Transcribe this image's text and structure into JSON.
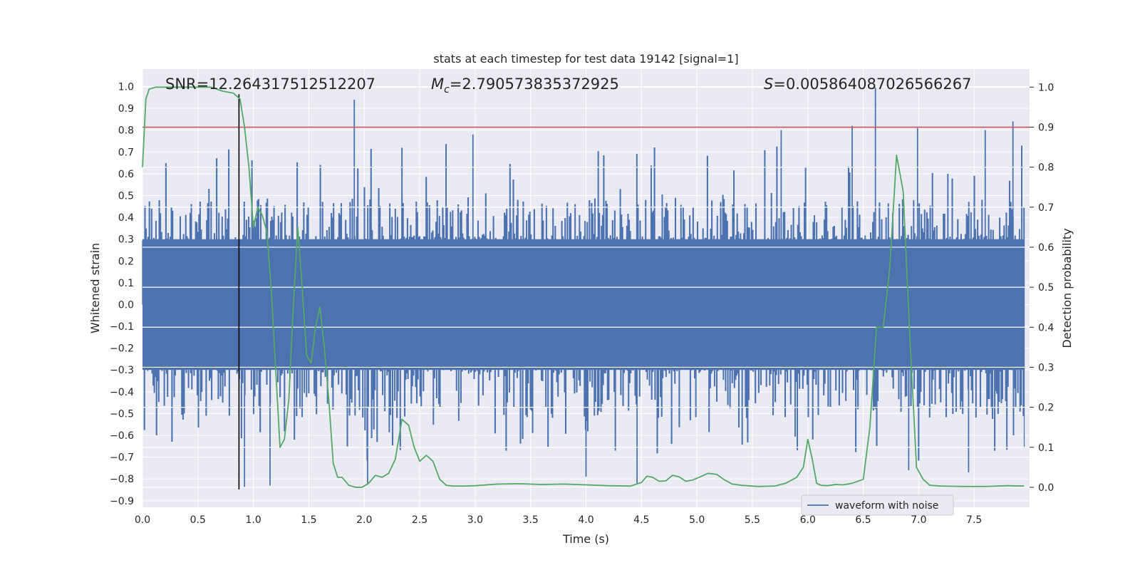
{
  "chart_data": {
    "type": "line",
    "title": "stats at each timestep for test data 19142 [signal=1]",
    "xlabel": "Time (s)",
    "ylabel_left": "Whitened strain",
    "ylabel_right": "Detection probability",
    "xlim": [
      0.0,
      8.0
    ],
    "ylim_left": [
      -0.93,
      1.08
    ],
    "ylim_right": [
      -0.05,
      1.045
    ],
    "x_ticks": [
      "0.0",
      "0.5",
      "1.0",
      "1.5",
      "2.0",
      "2.5",
      "3.0",
      "3.5",
      "4.0",
      "4.5",
      "5.0",
      "5.5",
      "6.0",
      "6.5",
      "7.0",
      "7.5"
    ],
    "x_tick_values": [
      0.0,
      0.5,
      1.0,
      1.5,
      2.0,
      2.5,
      3.0,
      3.5,
      4.0,
      4.5,
      5.0,
      5.5,
      6.0,
      6.5,
      7.0,
      7.5
    ],
    "y_left_ticks": [
      "1.0",
      "0.9",
      "0.8",
      "0.7",
      "0.6",
      "0.5",
      "0.4",
      "0.3",
      "0.2",
      "0.1",
      "0.0",
      "−0.1",
      "−0.2",
      "−0.3",
      "−0.4",
      "−0.5",
      "−0.6",
      "−0.7",
      "−0.8",
      "−0.9"
    ],
    "y_left_tick_values": [
      1.0,
      0.9,
      0.8,
      0.7,
      0.6,
      0.5,
      0.4,
      0.3,
      0.2,
      0.1,
      0.0,
      -0.1,
      -0.2,
      -0.3,
      -0.4,
      -0.5,
      -0.6,
      -0.7,
      -0.8,
      -0.9
    ],
    "y_right_ticks": [
      "1.0",
      "0.9",
      "0.8",
      "0.7",
      "0.6",
      "0.5",
      "0.4",
      "0.3",
      "0.2",
      "0.1",
      "0.0"
    ],
    "y_right_tick_values": [
      1.0,
      0.9,
      0.8,
      0.7,
      0.6,
      0.5,
      0.4,
      0.3,
      0.2,
      0.1,
      0.0
    ],
    "annotations": {
      "snr": "SNR=12.264317512512207",
      "mc_symbol": "M",
      "mc_sub": "c",
      "mc_value": "=2.790573835372925",
      "s_symbol": "S",
      "s_value": "=0.005864087026566267"
    },
    "legend": {
      "label": "waveform with noise",
      "location": "lower right"
    },
    "threshold": {
      "value": 0.9,
      "axis": "right",
      "color": "#c44e52"
    },
    "event_time": 0.87,
    "waveform": {
      "name": "waveform with noise",
      "color": "#4c72b0",
      "dense_band": [
        -0.3,
        0.3
      ],
      "typical_peak_pos": 0.45,
      "typical_peak_neg": -0.5,
      "spikes": [
        {
          "t": 1.91,
          "v": 0.94
        },
        {
          "t": 6.61,
          "v": 1.0
        },
        {
          "t": 7.85,
          "v": 0.84
        },
        {
          "t": 6.4,
          "v": 0.82
        },
        {
          "t": 6.99,
          "v": 0.81
        },
        {
          "t": 5.76,
          "v": 0.8
        },
        {
          "t": 7.6,
          "v": 0.8
        },
        {
          "t": 2.98,
          "v": 0.78
        },
        {
          "t": 0.92,
          "v": -0.84
        },
        {
          "t": 2.03,
          "v": -0.82
        },
        {
          "t": 1.15,
          "v": -0.83
        },
        {
          "t": 4.46,
          "v": -0.82
        },
        {
          "t": 4.0,
          "v": -0.79
        },
        {
          "t": 7.45,
          "v": -0.77
        },
        {
          "t": 6.91,
          "v": -0.76
        }
      ]
    },
    "probability": {
      "name": "detection probability",
      "color": "#55a868",
      "x": [
        0.0,
        0.03,
        0.06,
        0.12,
        0.3,
        0.5,
        0.62,
        0.72,
        0.82,
        0.88,
        0.92,
        0.96,
        1.0,
        1.04,
        1.08,
        1.12,
        1.16,
        1.2,
        1.24,
        1.28,
        1.32,
        1.36,
        1.4,
        1.44,
        1.48,
        1.52,
        1.56,
        1.6,
        1.64,
        1.68,
        1.72,
        1.76,
        1.8,
        1.86,
        1.92,
        1.98,
        2.04,
        2.1,
        2.16,
        2.22,
        2.28,
        2.34,
        2.4,
        2.45,
        2.5,
        2.56,
        2.62,
        2.68,
        2.74,
        2.8,
        2.9,
        3.0,
        3.2,
        3.4,
        3.6,
        3.8,
        4.0,
        4.2,
        4.4,
        4.5,
        4.55,
        4.6,
        4.66,
        4.72,
        4.78,
        4.84,
        4.9,
        4.96,
        5.02,
        5.1,
        5.18,
        5.24,
        5.32,
        5.4,
        5.55,
        5.7,
        5.8,
        5.9,
        5.96,
        6.0,
        6.04,
        6.08,
        6.12,
        6.18,
        6.25,
        6.32,
        6.4,
        6.5,
        6.56,
        6.62,
        6.68,
        6.74,
        6.8,
        6.86,
        6.92,
        6.98,
        7.04,
        7.1,
        7.2,
        7.4,
        7.6,
        7.8,
        7.95
      ],
      "y": [
        0.8,
        0.97,
        0.995,
        1.0,
        1.0,
        1.0,
        1.0,
        0.99,
        0.985,
        0.97,
        0.9,
        0.8,
        0.65,
        0.7,
        0.68,
        0.64,
        0.5,
        0.3,
        0.1,
        0.12,
        0.22,
        0.45,
        0.65,
        0.5,
        0.33,
        0.31,
        0.4,
        0.45,
        0.35,
        0.22,
        0.06,
        0.025,
        0.025,
        0.005,
        0.0,
        0.0,
        0.01,
        0.03,
        0.025,
        0.035,
        0.07,
        0.17,
        0.155,
        0.1,
        0.065,
        0.08,
        0.065,
        0.02,
        0.005,
        0.003,
        0.003,
        0.004,
        0.008,
        0.009,
        0.007,
        0.008,
        0.006,
        0.004,
        0.003,
        0.012,
        0.028,
        0.025,
        0.015,
        0.016,
        0.03,
        0.026,
        0.015,
        0.018,
        0.025,
        0.035,
        0.032,
        0.02,
        0.008,
        0.005,
        0.002,
        0.003,
        0.01,
        0.025,
        0.05,
        0.12,
        0.07,
        0.01,
        0.005,
        0.004,
        0.007,
        0.006,
        0.01,
        0.02,
        0.15,
        0.4,
        0.4,
        0.55,
        0.83,
        0.74,
        0.38,
        0.05,
        0.02,
        0.005,
        0.003,
        0.002,
        0.002,
        0.004,
        0.003
      ]
    }
  }
}
